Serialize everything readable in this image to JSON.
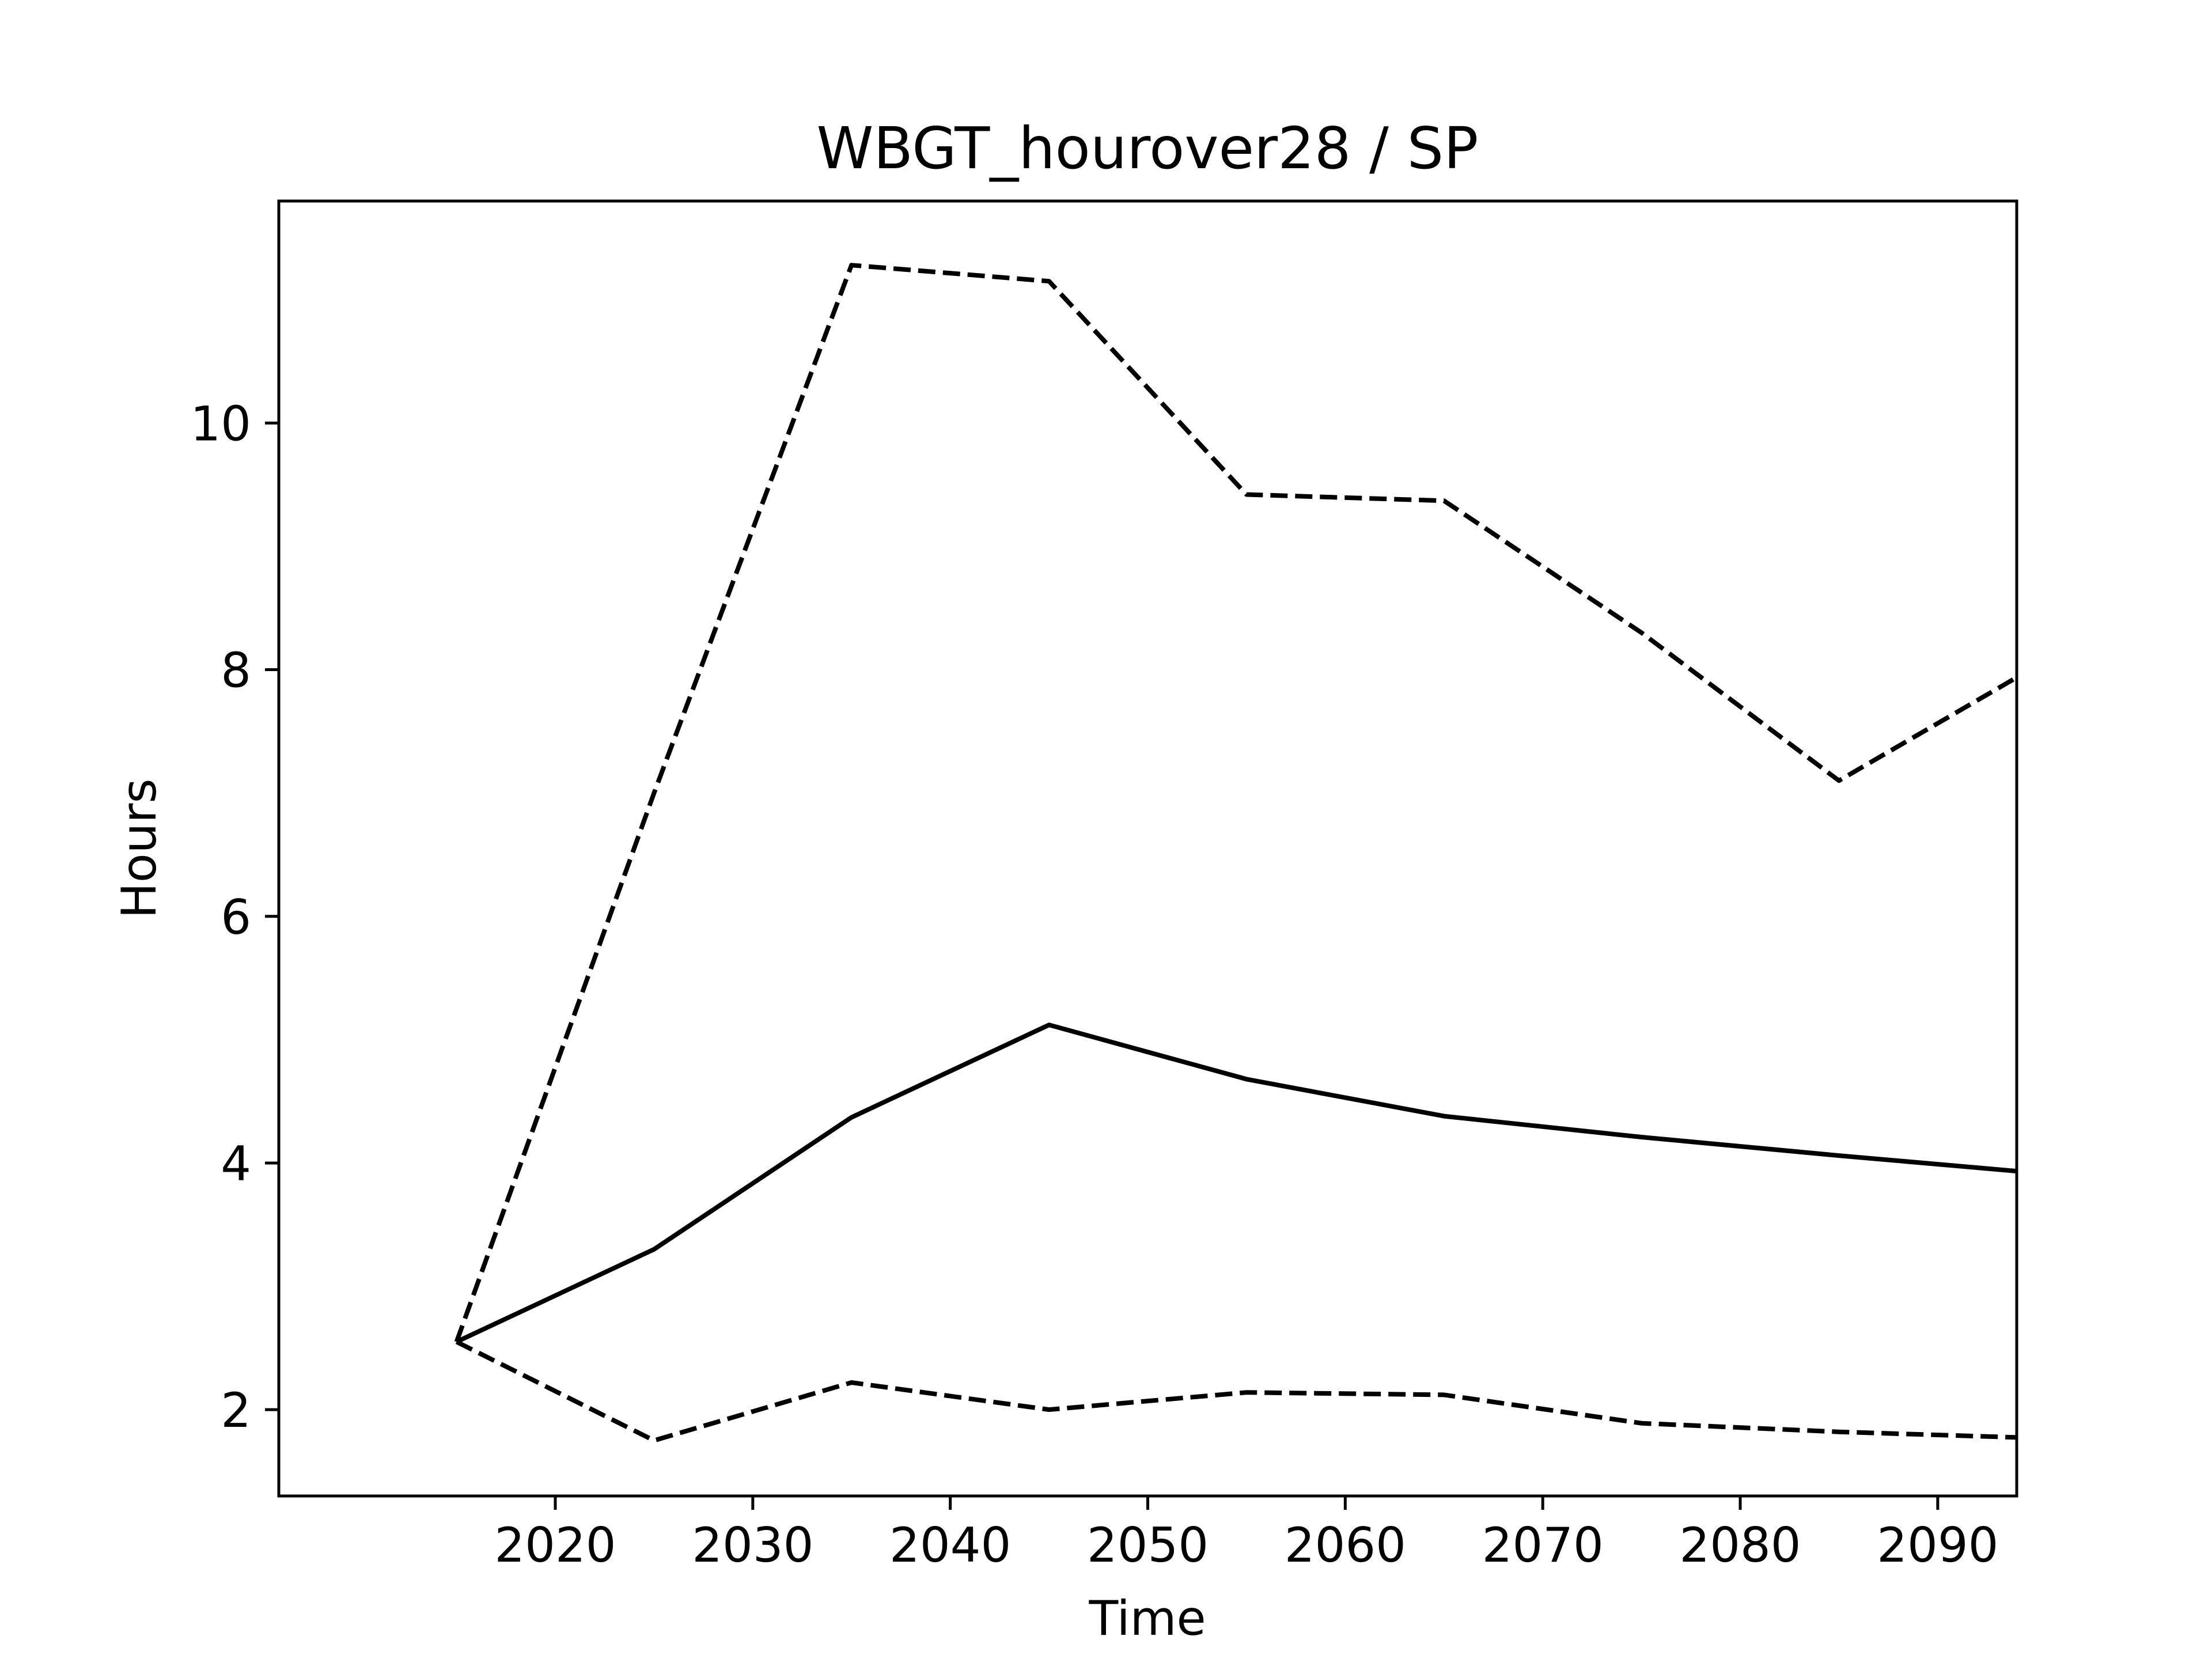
{
  "chart_data": {
    "type": "line",
    "title": "WBGT_hourover28 / SP",
    "xlabel": "Time",
    "ylabel": "Hours",
    "x": [
      2015,
      2025,
      2035,
      2045,
      2055,
      2065,
      2075,
      2085,
      2095
    ],
    "xlim": [
      2006,
      2094
    ],
    "ylim": [
      1.3,
      11.8
    ],
    "xticks": [
      2020,
      2030,
      2040,
      2050,
      2060,
      2070,
      2080,
      2090
    ],
    "yticks": [
      2,
      4,
      6,
      8,
      10
    ],
    "grid": false,
    "series": [
      {
        "style": "solid",
        "color": "#000000",
        "values": [
          2.55,
          3.3,
          4.37,
          5.12,
          4.68,
          4.38,
          4.21,
          4.06,
          3.92
        ]
      },
      {
        "style": "dashed",
        "color": "#000000",
        "values": [
          2.55,
          7.0,
          11.28,
          11.15,
          9.42,
          9.37,
          8.3,
          7.1,
          8.03
        ]
      },
      {
        "style": "dashed",
        "color": "#000000",
        "values": [
          2.55,
          1.75,
          2.22,
          2.0,
          2.14,
          2.12,
          1.89,
          1.82,
          1.77
        ]
      }
    ]
  }
}
